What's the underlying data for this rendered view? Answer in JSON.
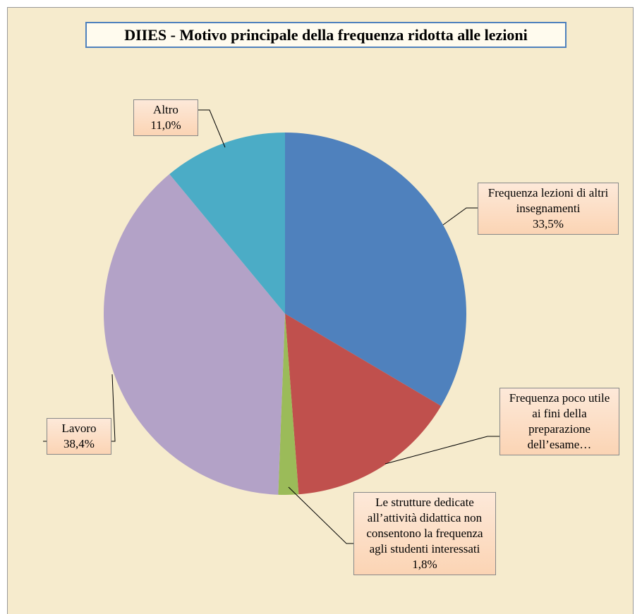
{
  "chart_data": {
    "type": "pie",
    "title": "DIIES - Motivo principale della frequenza ridotta alle lezioni",
    "categories": [
      "Frequenza lezioni di altri insegnamenti",
      "Frequenza poco utile ai fini della preparazione dell’esame…",
      "Le strutture dedicate all’attività didattica non consentono la frequenza agli studenti interessati",
      "Lavoro",
      "Altro"
    ],
    "values": [
      33.5,
      15.3,
      1.8,
      38.4,
      11.0
    ],
    "value_labels": [
      "33,5%",
      null,
      "1,8%",
      "38,4%",
      "11,0%"
    ],
    "colors": [
      "#4f81bd",
      "#c0504d",
      "#9bbb59",
      "#b3a2c7",
      "#4bacc6"
    ]
  }
}
